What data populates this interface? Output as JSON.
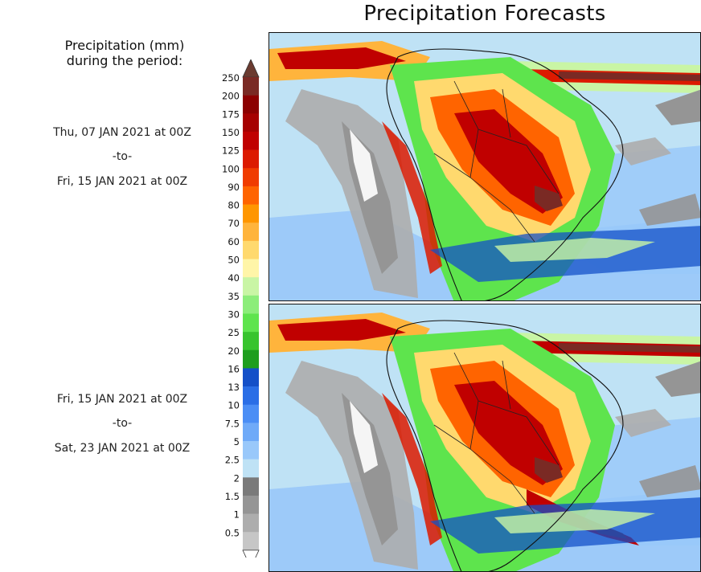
{
  "title": "Precipitation Forecasts",
  "legend": {
    "title_line1": "Precipitation (mm)",
    "title_line2": "during the period:",
    "levels": [
      {
        "label": "250",
        "color": "#7a2a24"
      },
      {
        "label": "200",
        "color": "#8c0000"
      },
      {
        "label": "175",
        "color": "#a60000"
      },
      {
        "label": "150",
        "color": "#c00000"
      },
      {
        "label": "125",
        "color": "#dc1a00"
      },
      {
        "label": "100",
        "color": "#f03c00"
      },
      {
        "label": "90",
        "color": "#ff6400"
      },
      {
        "label": "80",
        "color": "#ff9600"
      },
      {
        "label": "70",
        "color": "#ffb43c"
      },
      {
        "label": "60",
        "color": "#ffd96e"
      },
      {
        "label": "50",
        "color": "#fff5a8"
      },
      {
        "label": "40",
        "color": "#c9f5a5"
      },
      {
        "label": "35",
        "color": "#8ced7a"
      },
      {
        "label": "30",
        "color": "#5ee44d"
      },
      {
        "label": "25",
        "color": "#37c42d"
      },
      {
        "label": "20",
        "color": "#1e9e1e"
      },
      {
        "label": "16",
        "color": "#1450c8"
      },
      {
        "label": "13",
        "color": "#2a6ee6"
      },
      {
        "label": "10",
        "color": "#4b8ef5"
      },
      {
        "label": "7.5",
        "color": "#6faaf8"
      },
      {
        "label": "5",
        "color": "#99c8fa"
      },
      {
        "label": "2.5",
        "color": "#bfe2f5"
      },
      {
        "label": "2",
        "color": "#7a7a7a"
      },
      {
        "label": "1.5",
        "color": "#959595"
      },
      {
        "label": "1",
        "color": "#adadad"
      },
      {
        "label": "0.5",
        "color": "#c6c6c6"
      }
    ],
    "top_cap_color": "#6b3b30",
    "bottom_cap_color": "#ffffff"
  },
  "periods": [
    {
      "start": "Thu, 07 JAN 2021 at 00Z",
      "separator": "-to-",
      "end": "Fri, 15 JAN 2021 at 00Z"
    },
    {
      "start": "Fri, 15 JAN 2021 at 00Z",
      "separator": "-to-",
      "end": "Sat, 23 JAN 2021 at 00Z"
    }
  ],
  "maps": [
    {
      "name": "South America precipitation forecast, 07–15 JAN 2021"
    },
    {
      "name": "South America precipitation forecast, 15–23 JAN 2021"
    }
  ]
}
